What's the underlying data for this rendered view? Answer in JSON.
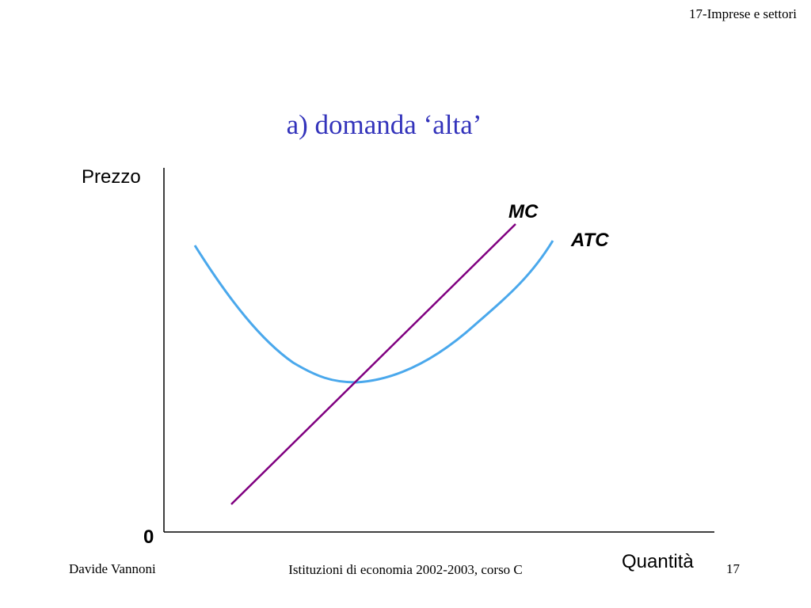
{
  "header": {
    "label": "17-Imprese e settori"
  },
  "title": "a) domanda ‘alta’",
  "diagram": {
    "y_axis_label": "Prezzo",
    "x_axis_label": "Quantità",
    "origin_label": "0",
    "curves": [
      {
        "label": "MC"
      },
      {
        "label": "ATC"
      }
    ]
  },
  "footer": {
    "author": "Davide Vannoni",
    "course": "Istituzioni di economia 2002-2003, corso C",
    "page": "17"
  }
}
